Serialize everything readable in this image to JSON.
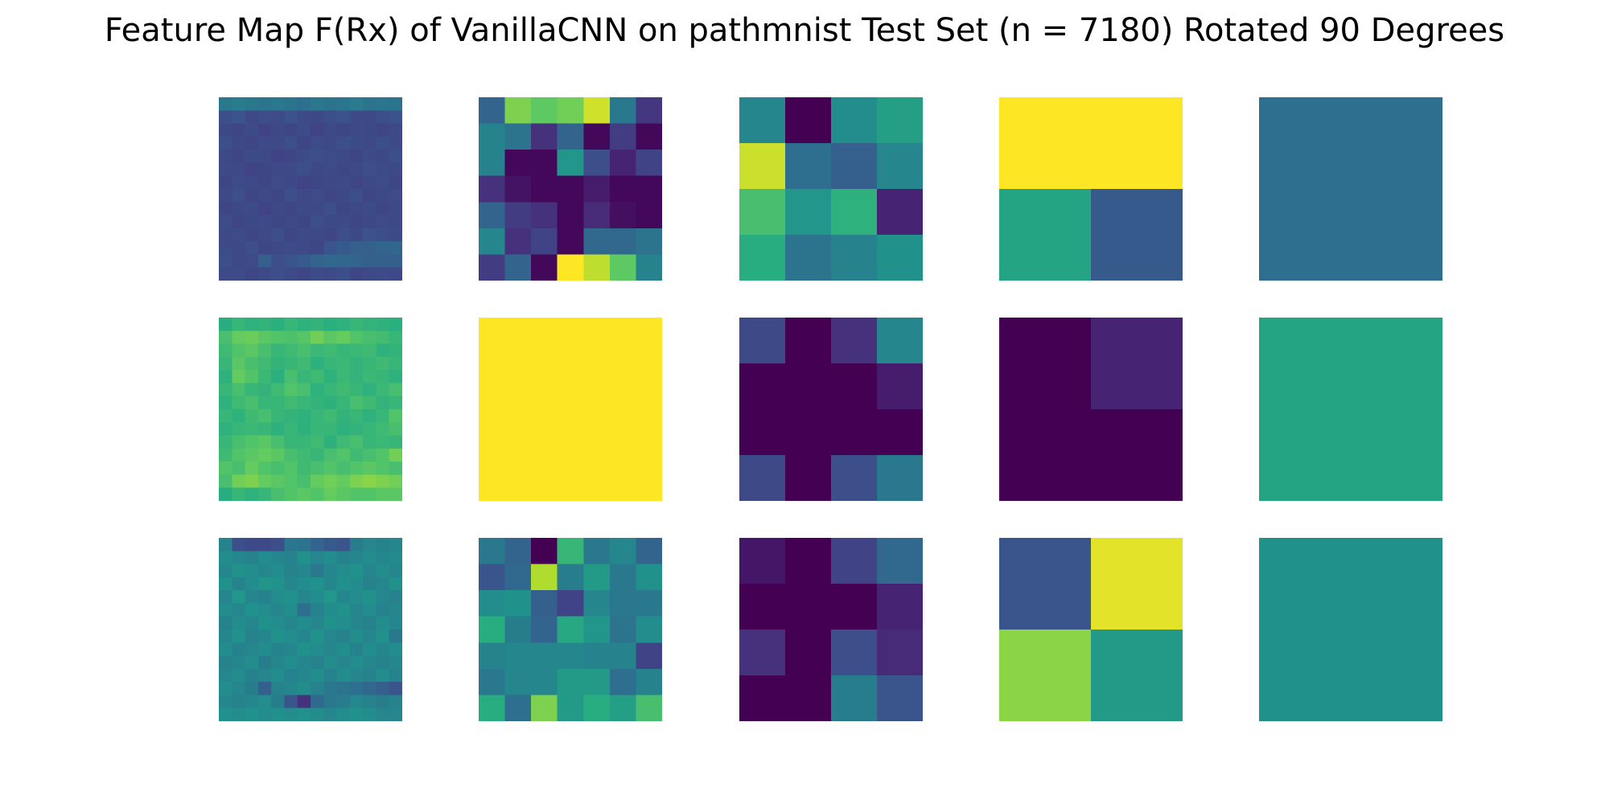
{
  "chart_data": {
    "type": "heatmap",
    "title": "Feature Map F(Rx) of VanillaCNN on pathmnist Test Set (n = 7180) Rotated 90 Degrees",
    "colormap": "viridis",
    "axes": "off",
    "grid_shape": [
      3,
      5
    ],
    "maps": [
      [
        {
          "rows": [
            [
              0.4,
              0.42,
              0.4,
              0.38,
              0.4,
              0.38,
              0.36,
              0.4,
              0.38,
              0.39,
              0.41,
              0.38,
              0.39,
              0.38
            ],
            [
              0.24,
              0.26,
              0.22,
              0.24,
              0.23,
              0.25,
              0.23,
              0.22,
              0.24,
              0.25,
              0.23,
              0.22,
              0.24,
              0.25
            ],
            [
              0.22,
              0.21,
              0.23,
              0.2,
              0.22,
              0.21,
              0.23,
              0.2,
              0.22,
              0.21,
              0.23,
              0.22,
              0.21,
              0.22
            ],
            [
              0.24,
              0.22,
              0.21,
              0.23,
              0.22,
              0.24,
              0.21,
              0.23,
              0.22,
              0.24,
              0.23,
              0.22,
              0.24,
              0.23
            ],
            [
              0.22,
              0.21,
              0.23,
              0.22,
              0.2,
              0.21,
              0.23,
              0.24,
              0.23,
              0.22,
              0.21,
              0.23,
              0.22,
              0.24
            ],
            [
              0.23,
              0.22,
              0.2,
              0.21,
              0.22,
              0.23,
              0.24,
              0.22,
              0.23,
              0.21,
              0.22,
              0.24,
              0.23,
              0.22
            ],
            [
              0.21,
              0.23,
              0.22,
              0.21,
              0.23,
              0.22,
              0.2,
              0.21,
              0.22,
              0.23,
              0.21,
              0.22,
              0.23,
              0.21
            ],
            [
              0.22,
              0.24,
              0.21,
              0.22,
              0.21,
              0.24,
              0.22,
              0.23,
              0.21,
              0.22,
              0.24,
              0.21,
              0.22,
              0.23
            ],
            [
              0.21,
              0.22,
              0.23,
              0.2,
              0.22,
              0.21,
              0.23,
              0.22,
              0.24,
              0.21,
              0.22,
              0.23,
              0.21,
              0.22
            ],
            [
              0.23,
              0.21,
              0.22,
              0.23,
              0.21,
              0.22,
              0.21,
              0.24,
              0.22,
              0.23,
              0.21,
              0.22,
              0.23,
              0.22
            ],
            [
              0.22,
              0.23,
              0.21,
              0.22,
              0.24,
              0.21,
              0.23,
              0.22,
              0.21,
              0.24,
              0.22,
              0.25,
              0.24,
              0.23
            ],
            [
              0.23,
              0.22,
              0.24,
              0.21,
              0.22,
              0.23,
              0.22,
              0.21,
              0.26,
              0.28,
              0.3,
              0.31,
              0.32,
              0.33
            ],
            [
              0.24,
              0.22,
              0.23,
              0.3,
              0.24,
              0.26,
              0.28,
              0.32,
              0.34,
              0.33,
              0.32,
              0.3,
              0.31,
              0.3
            ],
            [
              0.22,
              0.23,
              0.21,
              0.22,
              0.24,
              0.22,
              0.21,
              0.23,
              0.22,
              0.24,
              0.21,
              0.22,
              0.23,
              0.22
            ]
          ]
        },
        {
          "rows": [
            [
              0.32,
              0.8,
              0.75,
              0.78,
              0.93,
              0.4,
              0.16
            ],
            [
              0.44,
              0.38,
              0.14,
              0.32,
              0.02,
              0.18,
              0.02
            ],
            [
              0.44,
              0.02,
              0.02,
              0.52,
              0.24,
              0.1,
              0.2
            ],
            [
              0.14,
              0.05,
              0.02,
              0.02,
              0.08,
              0.02,
              0.02
            ],
            [
              0.32,
              0.18,
              0.14,
              0.02,
              0.12,
              0.04,
              0.02
            ],
            [
              0.46,
              0.14,
              0.2,
              0.02,
              0.34,
              0.34,
              0.38
            ],
            [
              0.18,
              0.32,
              0.02,
              1.0,
              0.9,
              0.75,
              0.44
            ]
          ]
        },
        {
          "rows": [
            [
              0.46,
              0.0,
              0.48,
              0.56
            ],
            [
              0.92,
              0.36,
              0.3,
              0.46
            ],
            [
              0.7,
              0.52,
              0.64,
              0.1
            ],
            [
              0.62,
              0.38,
              0.44,
              0.5
            ]
          ]
        },
        {
          "rows": [
            [
              1.0,
              1.0
            ],
            [
              0.58,
              0.28
            ]
          ]
        },
        {
          "rows": [
            [
              0.36
            ]
          ]
        }
      ],
      [
        {
          "rows": [
            [
              0.62,
              0.66,
              0.64,
              0.65,
              0.63,
              0.66,
              0.64,
              0.65,
              0.63,
              0.64,
              0.66,
              0.65,
              0.64,
              0.63
            ],
            [
              0.7,
              0.76,
              0.77,
              0.74,
              0.72,
              0.71,
              0.73,
              0.78,
              0.74,
              0.76,
              0.72,
              0.7,
              0.69,
              0.66
            ],
            [
              0.68,
              0.72,
              0.74,
              0.7,
              0.66,
              0.68,
              0.7,
              0.67,
              0.68,
              0.66,
              0.67,
              0.68,
              0.64,
              0.65
            ],
            [
              0.66,
              0.74,
              0.7,
              0.68,
              0.65,
              0.66,
              0.68,
              0.64,
              0.66,
              0.67,
              0.65,
              0.66,
              0.68,
              0.66
            ],
            [
              0.64,
              0.76,
              0.72,
              0.67,
              0.63,
              0.7,
              0.66,
              0.68,
              0.64,
              0.67,
              0.65,
              0.67,
              0.66,
              0.64
            ],
            [
              0.66,
              0.7,
              0.66,
              0.65,
              0.68,
              0.72,
              0.7,
              0.64,
              0.66,
              0.68,
              0.66,
              0.64,
              0.67,
              0.7
            ],
            [
              0.64,
              0.68,
              0.7,
              0.66,
              0.66,
              0.68,
              0.66,
              0.65,
              0.64,
              0.66,
              0.7,
              0.68,
              0.65,
              0.66
            ],
            [
              0.66,
              0.64,
              0.68,
              0.7,
              0.66,
              0.65,
              0.64,
              0.66,
              0.68,
              0.65,
              0.66,
              0.64,
              0.66,
              0.72
            ],
            [
              0.64,
              0.66,
              0.67,
              0.66,
              0.64,
              0.66,
              0.64,
              0.66,
              0.66,
              0.64,
              0.65,
              0.66,
              0.68,
              0.7
            ],
            [
              0.66,
              0.7,
              0.72,
              0.74,
              0.7,
              0.66,
              0.66,
              0.68,
              0.64,
              0.68,
              0.7,
              0.66,
              0.67,
              0.66
            ],
            [
              0.68,
              0.72,
              0.74,
              0.76,
              0.74,
              0.7,
              0.68,
              0.66,
              0.7,
              0.72,
              0.68,
              0.7,
              0.72,
              0.78
            ],
            [
              0.72,
              0.7,
              0.76,
              0.72,
              0.7,
              0.72,
              0.68,
              0.7,
              0.72,
              0.7,
              0.72,
              0.74,
              0.72,
              0.7
            ],
            [
              0.7,
              0.78,
              0.8,
              0.76,
              0.74,
              0.72,
              0.7,
              0.76,
              0.78,
              0.76,
              0.8,
              0.82,
              0.8,
              0.78
            ],
            [
              0.62,
              0.66,
              0.64,
              0.66,
              0.7,
              0.72,
              0.74,
              0.72,
              0.76,
              0.74,
              0.72,
              0.72,
              0.74,
              0.74
            ]
          ]
        },
        {
          "rows": [
            [
              1.0
            ]
          ]
        },
        {
          "rows": [
            [
              0.22,
              0.0,
              0.14,
              0.46
            ],
            [
              0.0,
              0.0,
              0.0,
              0.08
            ],
            [
              0.0,
              0.0,
              0.0,
              0.0
            ],
            [
              0.22,
              0.0,
              0.24,
              0.4
            ]
          ]
        },
        {
          "rows": [
            [
              0.0,
              0.1
            ],
            [
              0.0,
              0.0
            ]
          ]
        },
        {
          "rows": [
            [
              0.58
            ]
          ]
        }
      ],
      [
        {
          "rows": [
            [
              0.44,
              0.24,
              0.22,
              0.22,
              0.24,
              0.4,
              0.38,
              0.32,
              0.28,
              0.26,
              0.42,
              0.46,
              0.44,
              0.46
            ],
            [
              0.48,
              0.46,
              0.44,
              0.48,
              0.46,
              0.44,
              0.5,
              0.46,
              0.48,
              0.44,
              0.46,
              0.48,
              0.46,
              0.47
            ],
            [
              0.46,
              0.5,
              0.48,
              0.46,
              0.48,
              0.44,
              0.46,
              0.4,
              0.46,
              0.48,
              0.5,
              0.46,
              0.48,
              0.46
            ],
            [
              0.5,
              0.44,
              0.48,
              0.52,
              0.5,
              0.46,
              0.48,
              0.5,
              0.46,
              0.5,
              0.48,
              0.44,
              0.46,
              0.5
            ],
            [
              0.46,
              0.52,
              0.46,
              0.44,
              0.48,
              0.5,
              0.46,
              0.48,
              0.52,
              0.46,
              0.48,
              0.5,
              0.46,
              0.44
            ],
            [
              0.48,
              0.46,
              0.5,
              0.48,
              0.46,
              0.48,
              0.36,
              0.44,
              0.48,
              0.5,
              0.46,
              0.48,
              0.44,
              0.46
            ],
            [
              0.44,
              0.48,
              0.46,
              0.5,
              0.48,
              0.46,
              0.48,
              0.46,
              0.5,
              0.48,
              0.46,
              0.44,
              0.48,
              0.46
            ],
            [
              0.46,
              0.5,
              0.44,
              0.46,
              0.5,
              0.48,
              0.46,
              0.5,
              0.46,
              0.44,
              0.48,
              0.46,
              0.5,
              0.4
            ],
            [
              0.48,
              0.44,
              0.46,
              0.48,
              0.44,
              0.46,
              0.5,
              0.48,
              0.46,
              0.48,
              0.44,
              0.48,
              0.46,
              0.48
            ],
            [
              0.44,
              0.46,
              0.48,
              0.42,
              0.46,
              0.48,
              0.46,
              0.44,
              0.48,
              0.46,
              0.48,
              0.46,
              0.44,
              0.46
            ],
            [
              0.46,
              0.48,
              0.44,
              0.46,
              0.48,
              0.44,
              0.46,
              0.48,
              0.44,
              0.48,
              0.46,
              0.44,
              0.48,
              0.44
            ],
            [
              0.48,
              0.46,
              0.42,
              0.3,
              0.44,
              0.46,
              0.48,
              0.44,
              0.4,
              0.38,
              0.36,
              0.34,
              0.3,
              0.26
            ],
            [
              0.46,
              0.44,
              0.46,
              0.48,
              0.42,
              0.26,
              0.14,
              0.34,
              0.4,
              0.42,
              0.46,
              0.44,
              0.42,
              0.44
            ],
            [
              0.5,
              0.48,
              0.5,
              0.48,
              0.5,
              0.48,
              0.5,
              0.48,
              0.46,
              0.48,
              0.5,
              0.48,
              0.46,
              0.46
            ]
          ]
        },
        {
          "rows": [
            [
              0.4,
              0.32,
              0.0,
              0.66,
              0.4,
              0.46,
              0.32
            ],
            [
              0.26,
              0.34,
              0.88,
              0.42,
              0.54,
              0.4,
              0.5
            ],
            [
              0.48,
              0.5,
              0.3,
              0.2,
              0.46,
              0.4,
              0.4
            ],
            [
              0.62,
              0.42,
              0.32,
              0.6,
              0.52,
              0.38,
              0.48
            ],
            [
              0.44,
              0.46,
              0.46,
              0.46,
              0.44,
              0.44,
              0.2
            ],
            [
              0.4,
              0.46,
              0.46,
              0.54,
              0.54,
              0.36,
              0.44
            ],
            [
              0.62,
              0.36,
              0.8,
              0.54,
              0.62,
              0.56,
              0.7
            ]
          ]
        },
        {
          "rows": [
            [
              0.06,
              0.0,
              0.2,
              0.34
            ],
            [
              0.0,
              0.0,
              0.0,
              0.1
            ],
            [
              0.14,
              0.0,
              0.24,
              0.12
            ],
            [
              0.0,
              0.0,
              0.42,
              0.26
            ]
          ]
        },
        {
          "rows": [
            [
              0.26,
              0.96
            ],
            [
              0.82,
              0.54
            ]
          ]
        },
        {
          "rows": [
            [
              0.5
            ]
          ]
        }
      ]
    ]
  }
}
